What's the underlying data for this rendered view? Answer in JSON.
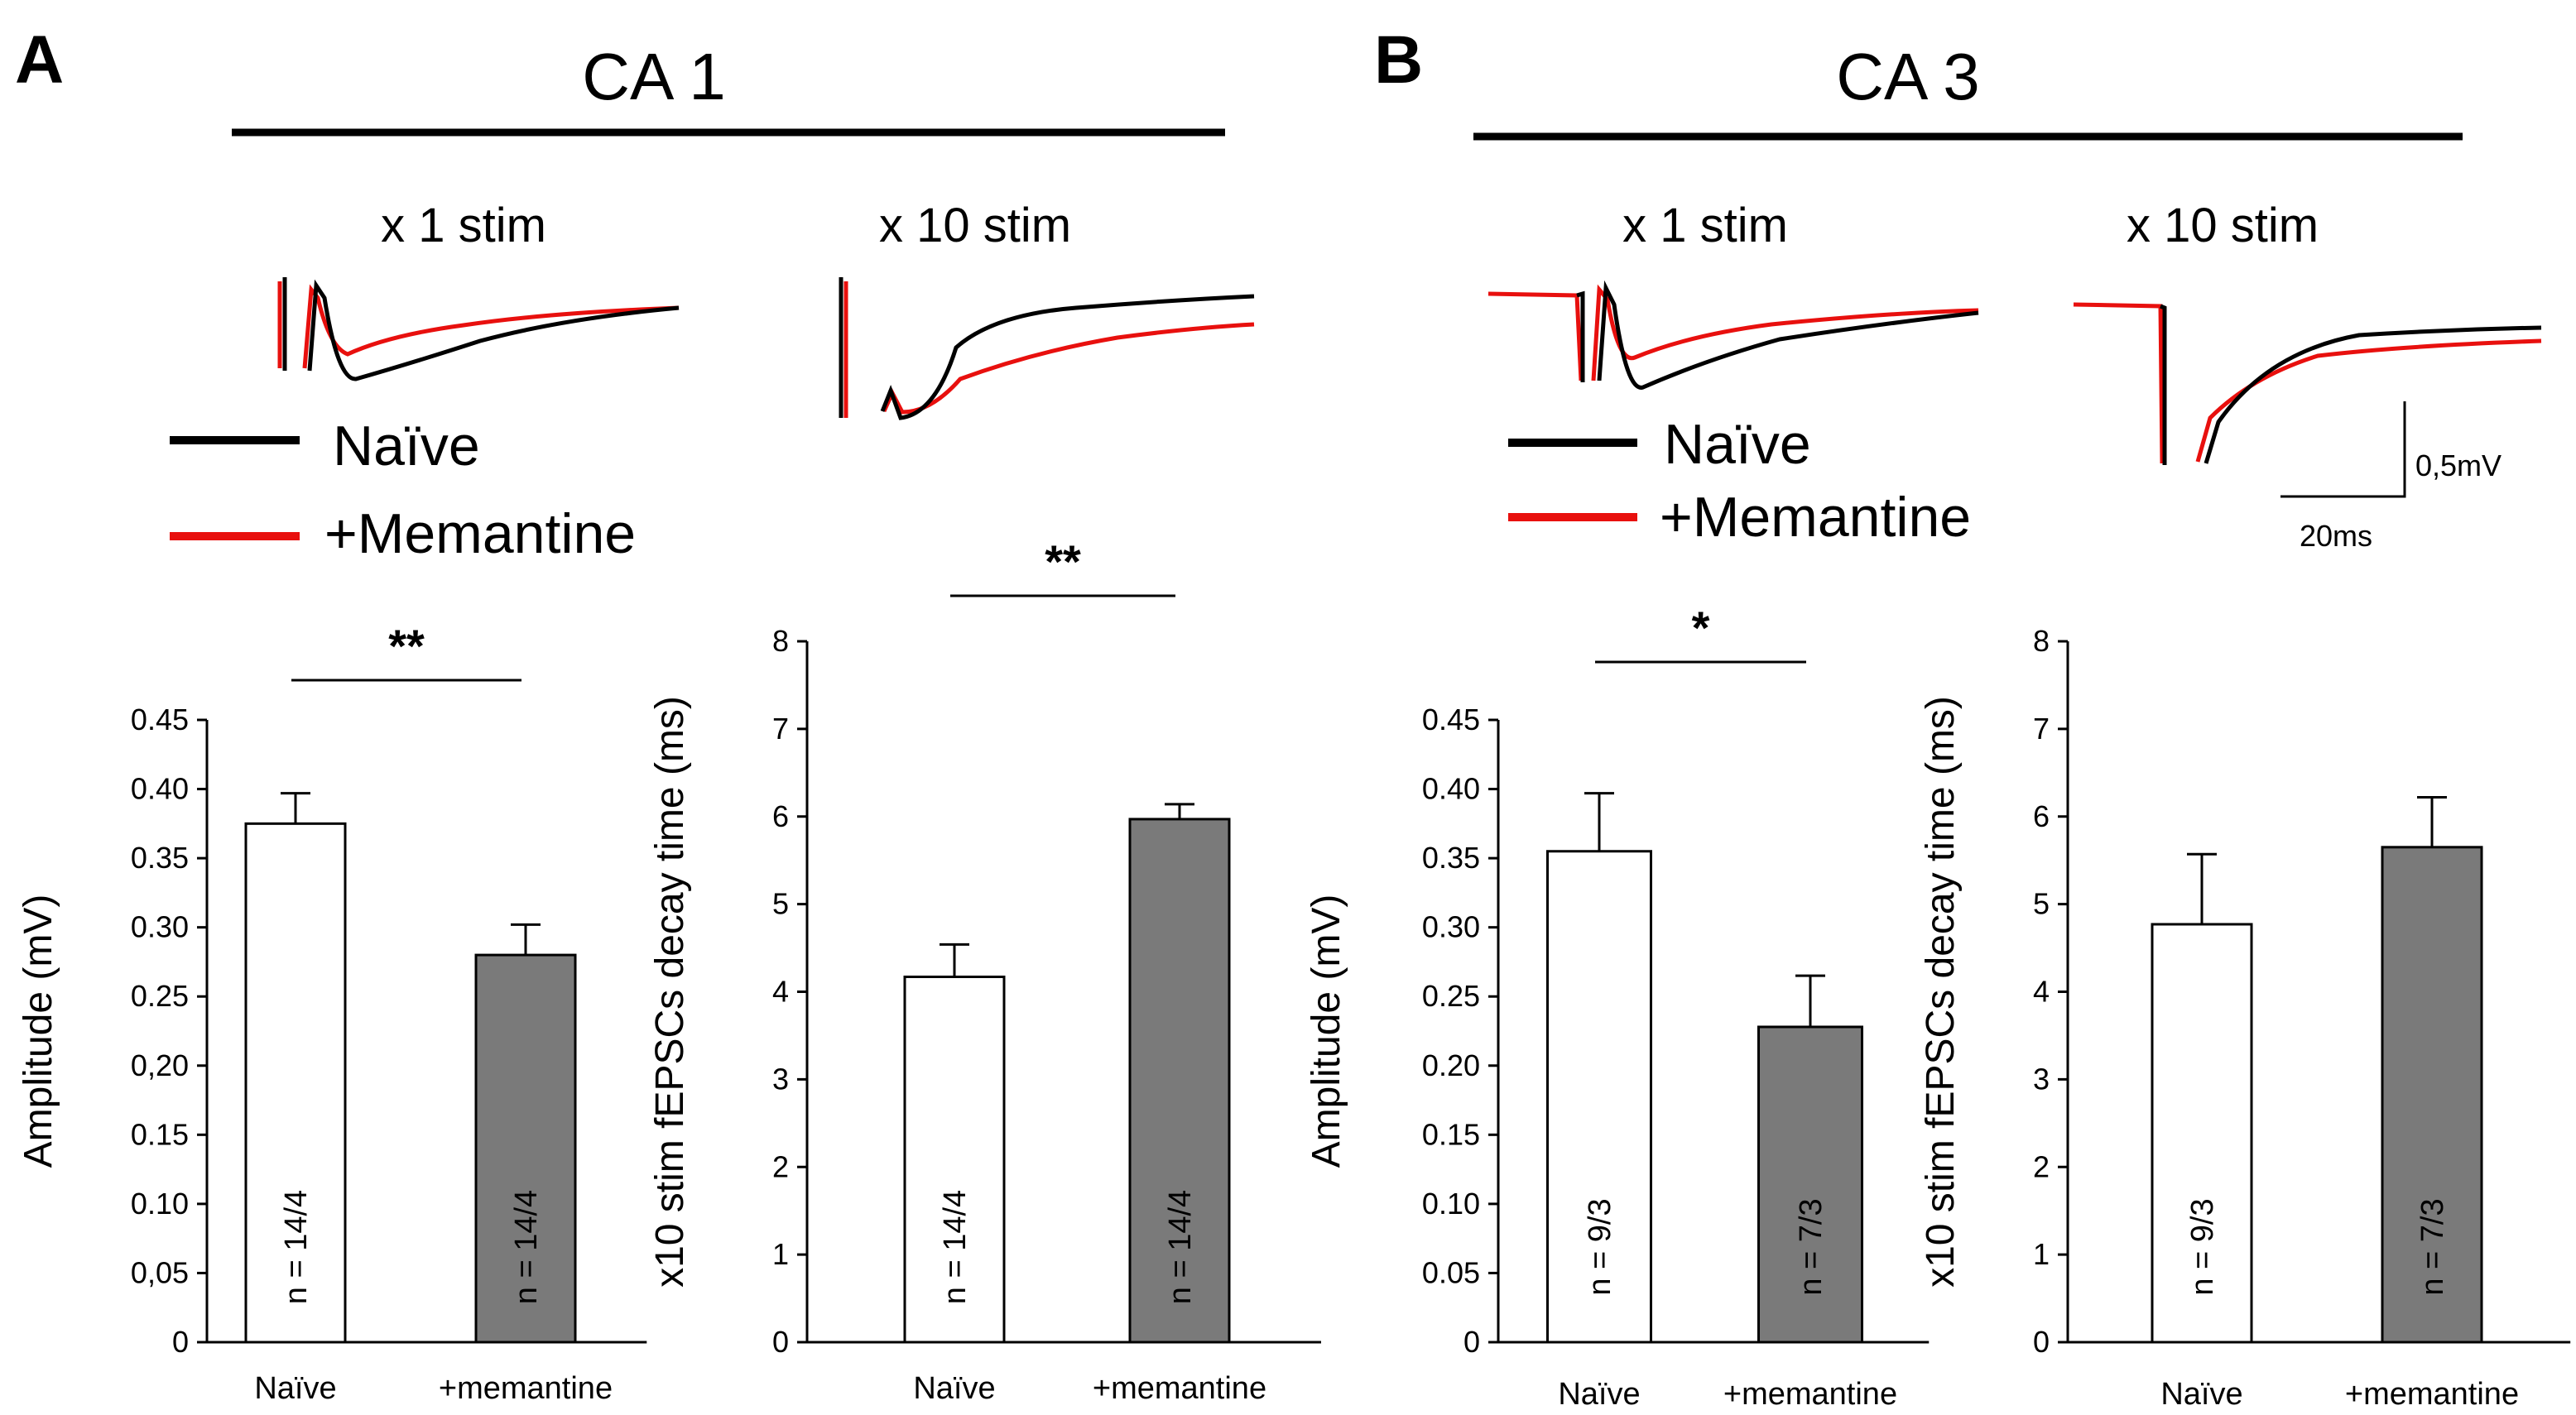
{
  "panels": [
    {
      "letter": "A",
      "region": "CA 1",
      "stim_labels": [
        "x 1 stim",
        "x 10 stim"
      ],
      "legend": [
        {
          "label": "Naïve",
          "color": "#000000"
        },
        {
          "label": "+Memantine",
          "color": "#e8100e"
        }
      ]
    },
    {
      "letter": "B",
      "region": "CA 3",
      "stim_labels": [
        "x 1 stim",
        "x 10 stim"
      ],
      "legend": [
        {
          "label": "Naïve",
          "color": "#000000"
        },
        {
          "label": "+Memantine",
          "color": "#e8100e"
        }
      ],
      "scale_bar": {
        "voltage": "0,5mV",
        "time": "20ms"
      }
    }
  ],
  "chart_data": [
    {
      "type": "bar",
      "panel": "A",
      "region": "CA 1",
      "ylabel": "Amplitude (mV)",
      "ylim": [
        0,
        0.45
      ],
      "yticks": [
        "0",
        "0,05",
        "0.10",
        "0.15",
        "0,20",
        "0.25",
        "0.30",
        "0.35",
        "0.40",
        "0.45"
      ],
      "categories": [
        "Naïve",
        "+memantine"
      ],
      "values": [
        0.375,
        0.28
      ],
      "errors": [
        0.022,
        0.022
      ],
      "n_labels": [
        "n = 14/4",
        "n = 14/4"
      ],
      "bar_fills": [
        "#ffffff",
        "#7a7a7a"
      ],
      "significance": "**"
    },
    {
      "type": "bar",
      "panel": "A",
      "region": "CA 1",
      "ylabel": "x10 stim fEPSCs decay time (ms)",
      "ylim": [
        0,
        8
      ],
      "yticks": [
        "0",
        "1",
        "2",
        "3",
        "4",
        "5",
        "6",
        "7",
        "8"
      ],
      "categories": [
        "Naïve",
        "+memantine"
      ],
      "values": [
        4.17,
        5.97
      ],
      "errors": [
        0.37,
        0.17
      ],
      "n_labels": [
        "n = 14/4",
        "n = 14/4"
      ],
      "bar_fills": [
        "#ffffff",
        "#7a7a7a"
      ],
      "significance": "**"
    },
    {
      "type": "bar",
      "panel": "B",
      "region": "CA 3",
      "ylabel": "Amplitude (mV)",
      "ylim": [
        0,
        0.45
      ],
      "yticks": [
        "0",
        "0.05",
        "0.10",
        "0.15",
        "0.20",
        "0.25",
        "0.30",
        "0.35",
        "0.40",
        "0.45"
      ],
      "categories": [
        "Naïve",
        "+memantine"
      ],
      "values": [
        0.355,
        0.228
      ],
      "errors": [
        0.042,
        0.037
      ],
      "n_labels": [
        "n = 9/3",
        "n = 7/3"
      ],
      "bar_fills": [
        "#ffffff",
        "#7a7a7a"
      ],
      "significance": "*"
    },
    {
      "type": "bar",
      "panel": "B",
      "region": "CA 3",
      "ylabel": "x10 stim fEPSCs decay time (ms)",
      "ylim": [
        0,
        8
      ],
      "yticks": [
        "0",
        "1",
        "2",
        "3",
        "4",
        "5",
        "6",
        "7",
        "8"
      ],
      "categories": [
        "Naïve",
        "+memantine"
      ],
      "values": [
        4.77,
        5.65
      ],
      "errors": [
        0.8,
        0.57
      ],
      "n_labels": [
        "n = 9/3",
        "n = 7/3"
      ],
      "bar_fills": [
        "#ffffff",
        "#7a7a7a"
      ],
      "significance": ""
    }
  ]
}
